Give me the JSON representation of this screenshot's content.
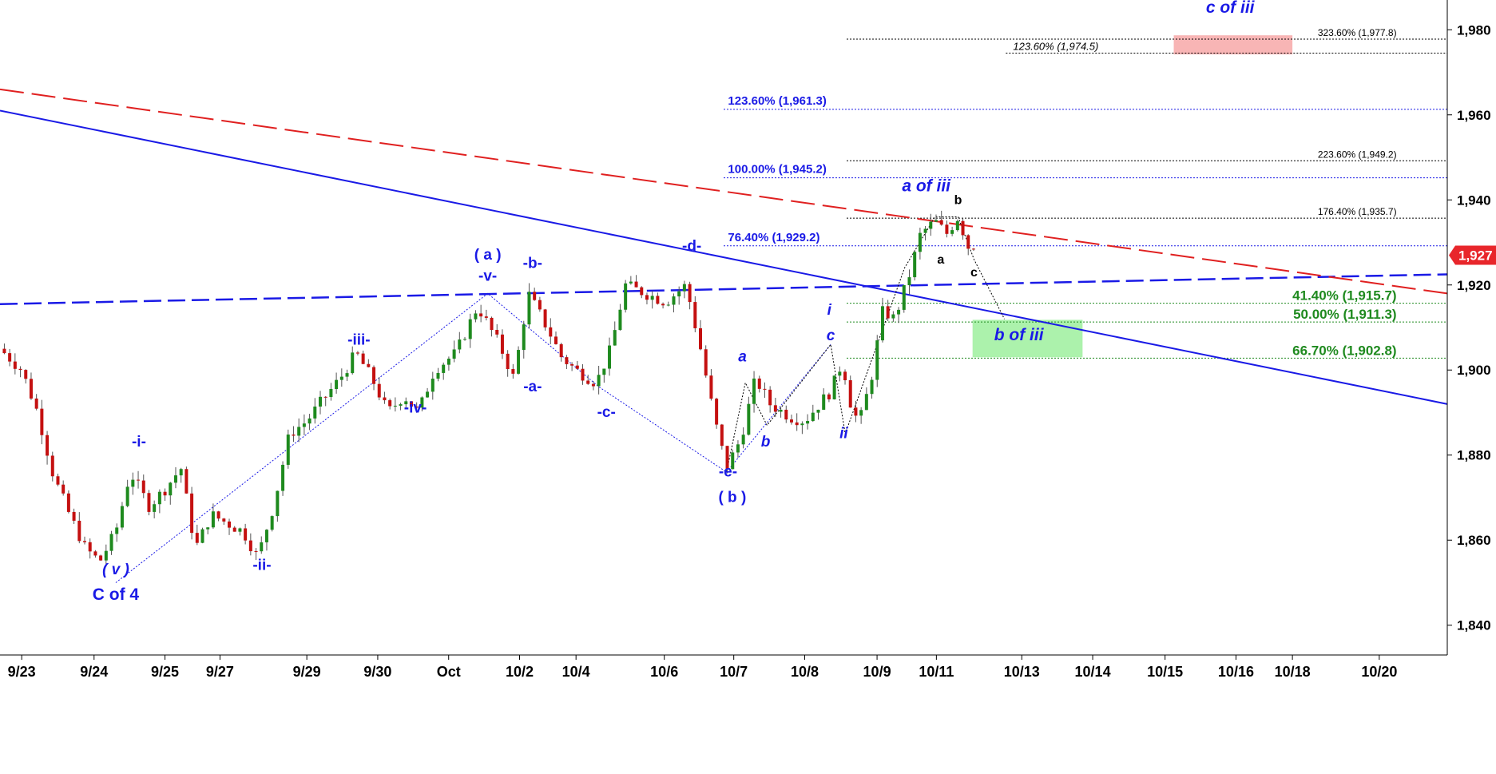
{
  "chart_data": {
    "type": "candlestick",
    "y_axis": {
      "ticks": [
        "1,840",
        "1,860",
        "1,880",
        "1,900",
        "1,920",
        "1,940",
        "1,960",
        "1,980"
      ],
      "tick_values": [
        1840,
        1860,
        1880,
        1900,
        1920,
        1940,
        1960,
        1980
      ],
      "range": [
        1833,
        1987
      ]
    },
    "x_axis": {
      "range": [
        0,
        100
      ],
      "ticks": [
        {
          "label": "9/23",
          "x": 1.5
        },
        {
          "label": "9/24",
          "x": 6.5
        },
        {
          "label": "9/25",
          "x": 11.4
        },
        {
          "label": "9/27",
          "x": 15.2
        },
        {
          "label": "9/29",
          "x": 21.2
        },
        {
          "label": "9/30",
          "x": 26.1
        },
        {
          "label": "Oct",
          "x": 31.0
        },
        {
          "label": "10/2",
          "x": 35.9
        },
        {
          "label": "10/4",
          "x": 39.8
        },
        {
          "label": "10/6",
          "x": 45.9
        },
        {
          "label": "10/7",
          "x": 50.7
        },
        {
          "label": "10/8",
          "x": 55.6
        },
        {
          "label": "10/9",
          "x": 60.6
        },
        {
          "label": "10/11",
          "x": 64.7
        },
        {
          "label": "10/13",
          "x": 70.6
        },
        {
          "label": "10/14",
          "x": 75.5
        },
        {
          "label": "10/15",
          "x": 80.5
        },
        {
          "label": "10/16",
          "x": 85.4
        },
        {
          "label": "10/18",
          "x": 89.3
        },
        {
          "label": "10/20",
          "x": 95.3
        }
      ]
    },
    "price_path": [
      [
        0,
        1905
      ],
      [
        1.5,
        1900
      ],
      [
        2.6,
        1890
      ],
      [
        3.7,
        1875
      ],
      [
        4.8,
        1866
      ],
      [
        5.9,
        1858
      ],
      [
        6.9,
        1855
      ],
      [
        8.0,
        1862
      ],
      [
        9.0,
        1876
      ],
      [
        10.3,
        1868
      ],
      [
        11.4,
        1872
      ],
      [
        12.5,
        1877
      ],
      [
        13.5,
        1858
      ],
      [
        14.6,
        1866
      ],
      [
        15.7,
        1864
      ],
      [
        16.8,
        1862
      ],
      [
        17.8,
        1856
      ],
      [
        18.9,
        1868
      ],
      [
        20.0,
        1885
      ],
      [
        21.2,
        1888
      ],
      [
        22.3,
        1893
      ],
      [
        23.5,
        1898
      ],
      [
        24.6,
        1904
      ],
      [
        25.7,
        1898
      ],
      [
        26.8,
        1890
      ],
      [
        27.9,
        1894
      ],
      [
        28.9,
        1890
      ],
      [
        30.0,
        1900
      ],
      [
        31.5,
        1904
      ],
      [
        33.0,
        1915
      ],
      [
        34.5,
        1906
      ],
      [
        35.5,
        1898
      ],
      [
        36.5,
        1918
      ],
      [
        37.8,
        1910
      ],
      [
        38.8,
        1903
      ],
      [
        39.8,
        1900
      ],
      [
        41.2,
        1897
      ],
      [
        42.2,
        1905
      ],
      [
        43.2,
        1920
      ],
      [
        44.6,
        1918
      ],
      [
        46.0,
        1916
      ],
      [
        47.4,
        1920
      ],
      [
        48.4,
        1905
      ],
      [
        49.4,
        1888
      ],
      [
        50.2,
        1877
      ],
      [
        51.2,
        1884
      ],
      [
        52.2,
        1898
      ],
      [
        53.2,
        1892
      ],
      [
        54.6,
        1889
      ],
      [
        55.6,
        1888
      ],
      [
        56.6,
        1892
      ],
      [
        57.4,
        1895
      ],
      [
        58.2,
        1902
      ],
      [
        58.9,
        1890
      ],
      [
        59.4,
        1888
      ],
      [
        60.2,
        1898
      ],
      [
        61.0,
        1914
      ],
      [
        61.8,
        1912
      ],
      [
        62.8,
        1922
      ],
      [
        63.6,
        1932
      ],
      [
        64.6,
        1935
      ],
      [
        65.4,
        1932
      ],
      [
        66.2,
        1936
      ],
      [
        67.0,
        1928
      ],
      [
        67.4,
        1930
      ]
    ],
    "levels": [
      {
        "label": "323.60% (1,977.8)",
        "value": 1977.8,
        "color": "#000000"
      },
      {
        "label": "123.60% (1,974.5)",
        "value": 1974.5,
        "color": "#000000"
      },
      {
        "label": "123.60% (1,961.3)",
        "value": 1961.3,
        "color": "#1a1ae6"
      },
      {
        "label": "223.60% (1,949.2)",
        "value": 1949.2,
        "color": "#000000"
      },
      {
        "label": "100.00% (1,945.2)",
        "value": 1945.2,
        "color": "#1a1ae6"
      },
      {
        "label": "176.40% (1,935.7)",
        "value": 1935.7,
        "color": "#000000"
      },
      {
        "label": "76.40% (1,929.2)",
        "value": 1929.2,
        "color": "#1a1ae6"
      },
      {
        "label": "41.40% (1,915.7)",
        "value": 1915.7,
        "color": "#1f8a1f"
      },
      {
        "label": "50.00% (1,911.3)",
        "value": 1911.3,
        "color": "#1f8a1f"
      },
      {
        "label": "66.70% (1,902.8)",
        "value": 1902.8,
        "color": "#1f8a1f"
      }
    ],
    "last_price_label": "1,927",
    "last_price": 1927,
    "wave_labels": [
      {
        "text": "( v )",
        "x": 8.0,
        "y": 1852,
        "style": "blue-italic"
      },
      {
        "text": "C of 4",
        "x": 8.0,
        "y": 1846,
        "style": "blue"
      },
      {
        "text": "-i-",
        "x": 9.6,
        "y": 1882,
        "style": "blue"
      },
      {
        "text": "-ii-",
        "x": 18.1,
        "y": 1853,
        "style": "blue"
      },
      {
        "text": "-iii-",
        "x": 24.8,
        "y": 1906,
        "style": "blue"
      },
      {
        "text": "-iv-",
        "x": 28.7,
        "y": 1890,
        "style": "blue"
      },
      {
        "text": "( a )",
        "x": 33.7,
        "y": 1926,
        "style": "blue"
      },
      {
        "text": "-v-",
        "x": 33.7,
        "y": 1921,
        "style": "blue"
      },
      {
        "text": "-b-",
        "x": 36.8,
        "y": 1924,
        "style": "blue"
      },
      {
        "text": "-a-",
        "x": 36.8,
        "y": 1895,
        "style": "blue"
      },
      {
        "text": "-c-",
        "x": 41.9,
        "y": 1889,
        "style": "blue"
      },
      {
        "text": "-d-",
        "x": 47.8,
        "y": 1928,
        "style": "blue"
      },
      {
        "text": "-e-",
        "x": 50.3,
        "y": 1875,
        "style": "blue"
      },
      {
        "text": "( b )",
        "x": 50.6,
        "y": 1869,
        "style": "blue"
      },
      {
        "text": "a",
        "x": 51.3,
        "y": 1902,
        "style": "blue-italic"
      },
      {
        "text": "b",
        "x": 52.9,
        "y": 1882,
        "style": "blue-italic"
      },
      {
        "text": "i",
        "x": 57.3,
        "y": 1913,
        "style": "blue-italic"
      },
      {
        "text": "c",
        "x": 57.4,
        "y": 1907,
        "style": "blue-italic"
      },
      {
        "text": "ii",
        "x": 58.3,
        "y": 1884,
        "style": "blue-italic"
      },
      {
        "text": "a of iii",
        "x": 64.0,
        "y": 1942,
        "style": "blue-italic"
      },
      {
        "text": "b",
        "x": 66.2,
        "y": 1939,
        "style": "black"
      },
      {
        "text": "a",
        "x": 65.0,
        "y": 1925,
        "style": "black"
      },
      {
        "text": "c",
        "x": 67.3,
        "y": 1922,
        "style": "black"
      },
      {
        "text": "b of iii",
        "x": 70.4,
        "y": 1907,
        "style": "blue-italic"
      },
      {
        "text": "c of iii",
        "x": 85.0,
        "y": 1984,
        "style": "blue-italic"
      }
    ]
  }
}
